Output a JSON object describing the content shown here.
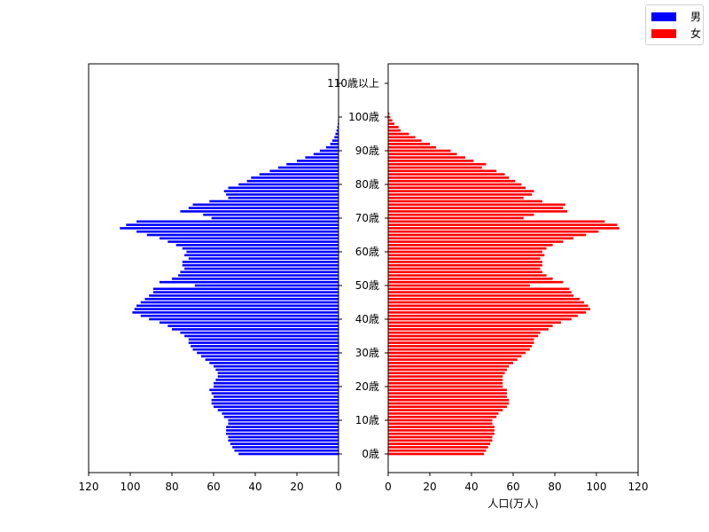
{
  "chart_data": {
    "type": "bar",
    "orientation": "horizontal",
    "subtype": "population-pyramid",
    "title": "",
    "xlabel": "人口(万人)",
    "ylabel": "",
    "xlim_left": [
      120,
      0
    ],
    "xlim_right": [
      0,
      120
    ],
    "ylim": [
      -5,
      116
    ],
    "x_ticks_left": [
      "120",
      "100",
      "80",
      "60",
      "40",
      "20",
      "0"
    ],
    "x_ticks_right": [
      "0",
      "20",
      "40",
      "60",
      "80",
      "100",
      "120"
    ],
    "y_ticks": [
      {
        "age": 0,
        "label": "0歳"
      },
      {
        "age": 10,
        "label": "10歳"
      },
      {
        "age": 20,
        "label": "20歳"
      },
      {
        "age": 30,
        "label": "30歳"
      },
      {
        "age": 40,
        "label": "40歳"
      },
      {
        "age": 50,
        "label": "50歳"
      },
      {
        "age": 60,
        "label": "60歳"
      },
      {
        "age": 70,
        "label": "70歳"
      },
      {
        "age": 80,
        "label": "80歳"
      },
      {
        "age": 90,
        "label": "90歳"
      },
      {
        "age": 100,
        "label": "100歳"
      },
      {
        "age": 110,
        "label": "110歳以上"
      }
    ],
    "grid": false,
    "legend_position": "upper right (figure)",
    "categories_note": "age 0 to 110歳以上, one bar per year",
    "series": [
      {
        "name": "男",
        "color": "#0000ff",
        "side": "left",
        "values": [
          48,
          50,
          51,
          52,
          53,
          53,
          54,
          54,
          54,
          53,
          53,
          55,
          56,
          58,
          60,
          61,
          61,
          60,
          61,
          62,
          60,
          60,
          59,
          58,
          58,
          59,
          60,
          62,
          64,
          66,
          68,
          70,
          71,
          72,
          72,
          74,
          76,
          80,
          82,
          86,
          91,
          95,
          99,
          98,
          97,
          95,
          93,
          91,
          89,
          89,
          69,
          86,
          80,
          77,
          76,
          74,
          75,
          75,
          72,
          74,
          73,
          75,
          78,
          82,
          86,
          92,
          97,
          105,
          102,
          97,
          61,
          65,
          76,
          72,
          70,
          62,
          53,
          54,
          55,
          53,
          48,
          44,
          42,
          38,
          33,
          29,
          25,
          20,
          16,
          12,
          9,
          6,
          4,
          3,
          2,
          1.5,
          1,
          0.6,
          0.4,
          0.3,
          0.2,
          0,
          0,
          0,
          0,
          0,
          0,
          0,
          0,
          0,
          0
        ]
      },
      {
        "name": "女",
        "color": "#ff0000",
        "side": "right",
        "values": [
          46,
          47,
          48,
          49,
          50,
          50,
          51,
          51,
          51,
          50,
          50,
          52,
          53,
          55,
          57,
          58,
          58,
          57,
          57,
          57,
          55,
          55,
          55,
          55,
          56,
          57,
          58,
          60,
          62,
          64,
          66,
          68,
          69,
          70,
          70,
          72,
          73,
          77,
          79,
          83,
          88,
          91,
          95,
          97,
          96,
          94,
          92,
          89,
          88,
          87,
          68,
          84,
          79,
          76,
          74,
          73,
          74,
          74,
          73,
          75,
          74,
          76,
          79,
          84,
          89,
          95,
          101,
          111,
          110,
          104,
          65,
          70,
          86,
          84,
          85,
          74,
          65,
          69,
          70,
          66,
          64,
          61,
          58,
          56,
          52,
          45,
          47,
          41,
          37,
          33,
          30,
          23,
          20,
          16,
          13,
          10,
          6,
          5,
          3,
          2,
          1,
          0.6,
          0,
          0,
          0,
          0,
          0,
          0,
          0,
          0,
          0
        ]
      }
    ]
  },
  "legend": {
    "items": [
      {
        "label": "男",
        "color": "#0000ff"
      },
      {
        "label": "女",
        "color": "#ff0000"
      }
    ]
  },
  "axes": {
    "xlabel": "人口(万人)"
  }
}
